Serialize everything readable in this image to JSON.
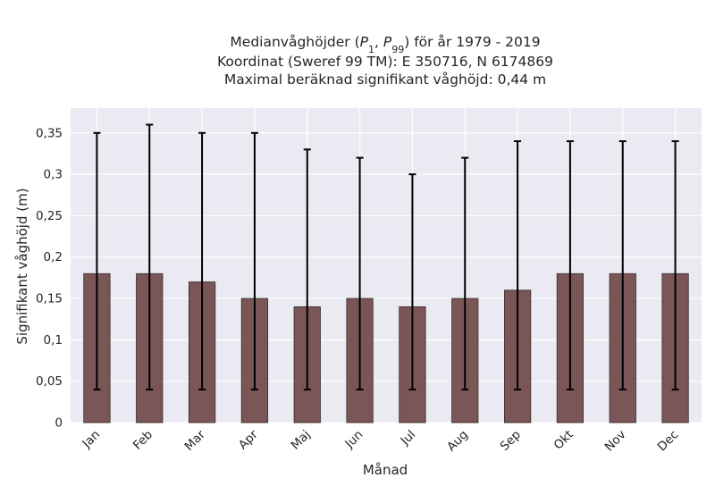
{
  "chart_data": {
    "type": "bar",
    "title_parts": {
      "prefix": "Medianvåghöjder (",
      "p_low": "P",
      "p_low_sub": "1",
      "sep": ", ",
      "p_high": "P",
      "p_high_sub": "99",
      "suffix": ") för år 1979 - 2019"
    },
    "subtitle_lines": [
      "Koordinat (Sweref 99 TM): E 350716, N 6174869",
      "Maximal beräknad signifikant våghöjd: 0,44 m"
    ],
    "xlabel": "Månad",
    "ylabel": "Signifikant våghöjd (m)",
    "categories": [
      "Jan",
      "Feb",
      "Mar",
      "Apr",
      "Maj",
      "Jun",
      "Jul",
      "Aug",
      "Sep",
      "Okt",
      "Nov",
      "Dec"
    ],
    "values": [
      0.18,
      0.18,
      0.17,
      0.15,
      0.14,
      0.15,
      0.14,
      0.15,
      0.16,
      0.18,
      0.18,
      0.18
    ],
    "err_low": [
      0.04,
      0.04,
      0.04,
      0.04,
      0.04,
      0.04,
      0.04,
      0.04,
      0.04,
      0.04,
      0.04,
      0.04
    ],
    "err_high": [
      0.35,
      0.36,
      0.35,
      0.35,
      0.33,
      0.32,
      0.3,
      0.32,
      0.34,
      0.34,
      0.34,
      0.34
    ],
    "ylim": [
      0,
      0.38
    ],
    "yticks": [
      0,
      0.05,
      0.1,
      0.15,
      0.2,
      0.25,
      0.3,
      0.35
    ],
    "ytick_labels": [
      "0",
      "0,05",
      "0,1",
      "0,15",
      "0,2",
      "0,25",
      "0,3",
      "0,35"
    ],
    "grid": true,
    "colors": {
      "bar": "#7a5656",
      "bar_edge": "#3a2a2a",
      "errorbar": "#000000",
      "plot_bg": "#eaeaf2",
      "grid": "#ffffff"
    }
  }
}
